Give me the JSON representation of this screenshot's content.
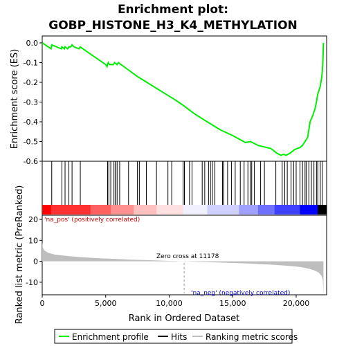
{
  "chart_data": [
    {
      "type": "line",
      "panel": "enrichment",
      "title_line1": "Enrichment plot:",
      "title_line2": "GOBP_HISTONE_H3_K4_METHYLATION",
      "ylabel": "Enrichment score (ES)",
      "ylim": [
        -0.6,
        0.0
      ],
      "yticks": [
        0.0,
        -0.1,
        -0.2,
        -0.3,
        -0.4,
        -0.5,
        -0.6
      ],
      "ytick_labels": [
        "0.0",
        "-0.1",
        "-0.2",
        "-0.3",
        "-0.4",
        "-0.5",
        "-0.6"
      ],
      "xlim": [
        0,
        22400
      ],
      "grid": false,
      "series": [
        {
          "name": "Enrichment profile",
          "color": "#00ee00",
          "x": [
            0,
            700,
            750,
            1500,
            1550,
            1750,
            1800,
            2000,
            2100,
            2250,
            2350,
            2500,
            2900,
            3000,
            3200,
            5000,
            5100,
            5200,
            5300,
            5600,
            5700,
            5900,
            6000,
            7500,
            9000,
            10500,
            11178,
            12000,
            13000,
            14000,
            15000,
            16000,
            16400,
            17000,
            18000,
            18500,
            18800,
            19000,
            19200,
            19500,
            19700,
            19900,
            20100,
            20300,
            20500,
            20700,
            20900,
            21000,
            21100,
            21300,
            21500,
            21600,
            21700,
            21900,
            22000,
            22050,
            22100,
            22150
          ],
          "y": [
            0.0,
            -0.03,
            -0.01,
            -0.03,
            -0.02,
            -0.03,
            -0.02,
            -0.03,
            -0.02,
            -0.02,
            -0.01,
            -0.02,
            -0.03,
            -0.02,
            -0.03,
            -0.11,
            -0.12,
            -0.1,
            -0.11,
            -0.11,
            -0.1,
            -0.11,
            -0.1,
            -0.17,
            -0.23,
            -0.29,
            -0.32,
            -0.36,
            -0.4,
            -0.44,
            -0.47,
            -0.505,
            -0.5,
            -0.52,
            -0.535,
            -0.56,
            -0.57,
            -0.565,
            -0.57,
            -0.56,
            -0.55,
            -0.54,
            -0.535,
            -0.53,
            -0.52,
            -0.5,
            -0.48,
            -0.44,
            -0.4,
            -0.37,
            -0.33,
            -0.3,
            -0.26,
            -0.22,
            -0.18,
            -0.15,
            -0.1,
            0.0
          ]
        }
      ]
    },
    {
      "type": "hits",
      "panel": "hits",
      "legend_name": "Hits",
      "xlim": [
        0,
        22400
      ],
      "positions": [
        750,
        1550,
        1800,
        2100,
        2350,
        3000,
        5150,
        5250,
        5400,
        5650,
        5750,
        5900,
        6100,
        6800,
        7500,
        7650,
        8200,
        9000,
        9900,
        10200,
        11100,
        11200,
        11600,
        11800,
        12600,
        12800,
        13100,
        13250,
        13400,
        13600,
        14200,
        14300,
        14600,
        14900,
        15200,
        15600,
        15900,
        16200,
        16400,
        16500,
        16700,
        17200,
        17500,
        18400,
        18900,
        19100,
        19300,
        19600,
        19800,
        20000,
        20300,
        20500,
        20700,
        20800,
        21000,
        21200,
        21400,
        21600,
        21700,
        21900,
        22050
      ]
    },
    {
      "type": "heatmap",
      "panel": "ranking-colorbar",
      "xlim": [
        0,
        22400
      ],
      "colors": [
        "#ff0000",
        "#ff3030",
        "#ff6060",
        "#ff9090",
        "#ffc0c0",
        "#ffe0e0",
        "#f0f0ff",
        "#d0d0ff",
        "#a0a0ff",
        "#7070ff",
        "#4040ff",
        "#0000ff"
      ],
      "segments_x": [
        0,
        700,
        3800,
        5400,
        7200,
        9000,
        11100,
        13000,
        15500,
        17000,
        18300,
        20300,
        21700,
        22400
      ]
    },
    {
      "type": "area",
      "panel": "ranked-metric",
      "legend_name": "Ranking metric scores",
      "ylabel": "Ranked list metric (PreRanked)",
      "xlabel": "Rank in Ordered Dataset",
      "ylim": [
        -16,
        22
      ],
      "yticks": [
        20,
        10,
        0,
        -10
      ],
      "ytick_labels": [
        "20",
        "10",
        "0",
        "-10"
      ],
      "xlim": [
        0,
        22400
      ],
      "xticks": [
        0,
        5000,
        10000,
        15000,
        20000
      ],
      "xtick_labels": [
        "0",
        "5,000",
        "10,000",
        "15,000",
        "20,000"
      ],
      "zero_cross": 11178,
      "fill_color": "#bebebe",
      "x": [
        0,
        50,
        200,
        500,
        1000,
        2000,
        3000,
        4000,
        5000,
        6000,
        7000,
        8000,
        9000,
        10000,
        11178,
        12000,
        13000,
        14000,
        15000,
        16000,
        17000,
        18000,
        19000,
        20000,
        20500,
        21000,
        21500,
        21800,
        22000,
        22100,
        22150
      ],
      "y": [
        9,
        6.5,
        5.0,
        4.0,
        3.2,
        2.5,
        2.0,
        1.6,
        1.3,
        1.05,
        0.8,
        0.6,
        0.4,
        0.2,
        0.0,
        -0.2,
        -0.4,
        -0.6,
        -0.8,
        -1.0,
        -1.3,
        -1.6,
        -2.0,
        -2.5,
        -2.9,
        -3.5,
        -4.5,
        -5.5,
        -7.0,
        -9.0,
        -15.5
      ]
    }
  ],
  "annotations": {
    "pos_label": "'na_pos' (positively correlated)",
    "neg_label": "'na_neg' (negatively correlated)",
    "zero_label": "Zero cross at 11178"
  },
  "legend": {
    "items": [
      {
        "label": "Enrichment profile",
        "color": "#00ee00"
      },
      {
        "label": "Hits",
        "color": "#000000"
      },
      {
        "label": "Ranking metric scores",
        "color": "#bebebe"
      }
    ]
  }
}
